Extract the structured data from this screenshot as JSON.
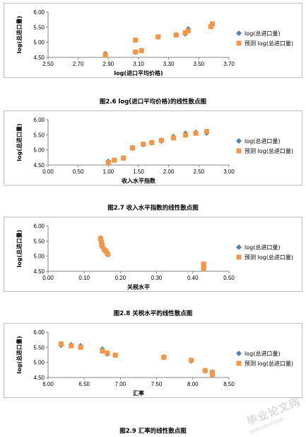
{
  "chart_data": [
    {
      "type": "scatter",
      "ylabel": "log(总进口量)",
      "xlabel": "log(进口平均价格)",
      "xlim": [
        2.5,
        3.7
      ],
      "ylim": [
        4.5,
        6.0
      ],
      "xticks": [
        2.5,
        2.7,
        2.9,
        3.1,
        3.3,
        3.5,
        3.7
      ],
      "yticks": [
        4.5,
        5.0,
        5.5,
        6.0
      ],
      "x_decimals": 2,
      "legend_position": "right",
      "grid": false,
      "series": [
        {
          "name": "log(总进口量)",
          "marker": "diamond",
          "color": "#4f81bd",
          "points": [
            [
              2.88,
              4.62
            ],
            [
              3.08,
              4.67
            ],
            [
              3.12,
              4.73
            ],
            [
              3.23,
              5.17
            ],
            [
              3.35,
              5.24
            ],
            [
              3.41,
              5.28
            ],
            [
              3.43,
              5.44
            ],
            [
              3.58,
              5.52
            ],
            [
              3.59,
              5.58
            ]
          ]
        },
        {
          "name": "预测 log(总进口量)",
          "marker": "square",
          "color": "#f79646",
          "points": [
            [
              2.88,
              4.58
            ],
            [
              3.08,
              5.07
            ],
            [
              3.08,
              4.68
            ],
            [
              3.12,
              4.72
            ],
            [
              3.23,
              5.18
            ],
            [
              3.35,
              5.24
            ],
            [
              3.41,
              5.31
            ],
            [
              3.43,
              5.38
            ],
            [
              3.58,
              5.52
            ],
            [
              3.59,
              5.61
            ]
          ]
        }
      ]
    },
    {
      "type": "scatter",
      "ylabel": "log(总进口量)",
      "xlabel": "收入水平指数",
      "xlim": [
        0.0,
        3.0
      ],
      "ylim": [
        4.5,
        6.0
      ],
      "xticks": [
        0.0,
        0.5,
        1.0,
        1.5,
        2.0,
        2.5,
        3.0
      ],
      "yticks": [
        4.5,
        5.0,
        5.5,
        6.0
      ],
      "x_decimals": 2,
      "legend_position": "right",
      "grid": false,
      "series": [
        {
          "name": "log(总进口量)",
          "marker": "diamond",
          "color": "#4f81bd",
          "points": [
            [
              1.0,
              4.62
            ],
            [
              1.1,
              4.66
            ],
            [
              1.25,
              4.73
            ],
            [
              1.4,
              5.06
            ],
            [
              1.58,
              5.18
            ],
            [
              1.72,
              5.24
            ],
            [
              1.88,
              5.29
            ],
            [
              2.08,
              5.44
            ],
            [
              2.28,
              5.55
            ],
            [
              2.45,
              5.58
            ],
            [
              2.63,
              5.56
            ]
          ]
        },
        {
          "name": "预测 log(总进口量)",
          "marker": "square",
          "color": "#f79646",
          "points": [
            [
              1.0,
              4.58
            ],
            [
              1.1,
              4.66
            ],
            [
              1.25,
              4.73
            ],
            [
              1.4,
              5.07
            ],
            [
              1.58,
              5.19
            ],
            [
              1.72,
              5.24
            ],
            [
              1.88,
              5.32
            ],
            [
              2.08,
              5.4
            ],
            [
              2.28,
              5.49
            ],
            [
              2.45,
              5.55
            ],
            [
              2.63,
              5.61
            ]
          ]
        }
      ]
    },
    {
      "type": "scatter",
      "ylabel": "log(总进口量)",
      "xlabel": "关税水平",
      "xlim": [
        0.0,
        0.5
      ],
      "ylim": [
        4.5,
        6.0
      ],
      "xticks": [
        0.0,
        0.1,
        0.2,
        0.3,
        0.4,
        0.5
      ],
      "yticks": [
        4.5,
        5.0,
        5.5,
        6.0
      ],
      "x_decimals": 2,
      "legend_position": "right",
      "grid": false,
      "series": [
        {
          "name": "log(总进口量)",
          "marker": "diamond",
          "color": "#4f81bd",
          "points": [
            [
              0.145,
              5.6
            ],
            [
              0.147,
              5.52
            ],
            [
              0.148,
              5.43
            ],
            [
              0.15,
              5.3
            ],
            [
              0.155,
              5.23
            ],
            [
              0.16,
              5.15
            ],
            [
              0.165,
              5.05
            ],
            [
              0.43,
              4.68
            ],
            [
              0.43,
              4.6
            ]
          ]
        },
        {
          "name": "预测 log(总进口量)",
          "marker": "square",
          "color": "#f79646",
          "points": [
            [
              0.145,
              5.58
            ],
            [
              0.147,
              5.48
            ],
            [
              0.148,
              5.4
            ],
            [
              0.15,
              5.33
            ],
            [
              0.155,
              5.22
            ],
            [
              0.16,
              5.16
            ],
            [
              0.165,
              5.07
            ],
            [
              0.43,
              4.74
            ],
            [
              0.43,
              4.68
            ],
            [
              0.43,
              4.6
            ]
          ]
        }
      ]
    },
    {
      "type": "scatter",
      "ylabel": "log(总进口量)",
      "xlabel": "汇率",
      "xlim": [
        6.0,
        8.5
      ],
      "ylim": [
        4.5,
        6.0
      ],
      "xticks": [
        6.0,
        6.5,
        7.0,
        7.5,
        8.0,
        8.5
      ],
      "yticks": [
        4.5,
        5.0,
        5.5,
        6.0
      ],
      "x_decimals": 2,
      "legend_position": "right",
      "grid": false,
      "series": [
        {
          "name": "log(总进口量)",
          "marker": "diamond",
          "color": "#4f81bd",
          "points": [
            [
              6.18,
              5.57
            ],
            [
              6.32,
              5.58
            ],
            [
              6.45,
              5.55
            ],
            [
              6.75,
              5.44
            ],
            [
              6.82,
              5.28
            ],
            [
              6.93,
              5.24
            ],
            [
              7.6,
              5.18
            ],
            [
              7.98,
              5.05
            ],
            [
              8.17,
              4.72
            ],
            [
              8.27,
              4.68
            ],
            [
              8.27,
              4.6
            ]
          ]
        },
        {
          "name": "预测 log(总进口量)",
          "marker": "square",
          "color": "#f79646",
          "points": [
            [
              6.18,
              5.61
            ],
            [
              6.32,
              5.55
            ],
            [
              6.45,
              5.5
            ],
            [
              6.75,
              5.38
            ],
            [
              6.82,
              5.31
            ],
            [
              6.93,
              5.24
            ],
            [
              7.6,
              5.17
            ],
            [
              7.98,
              5.07
            ],
            [
              8.17,
              4.73
            ],
            [
              8.27,
              4.67
            ],
            [
              8.27,
              4.6
            ]
          ]
        }
      ]
    }
  ],
  "captions": [
    "图2.6 log(进口平均价格)的线性散点图",
    "图2.7  收入水平指数的线性散点图",
    "图2.8  关税水平的线性散点图",
    "图2.9  汇率的线性散点图"
  ],
  "watermark": {
    "text": "毕业论文网",
    "url": "www.sbvv.com"
  }
}
